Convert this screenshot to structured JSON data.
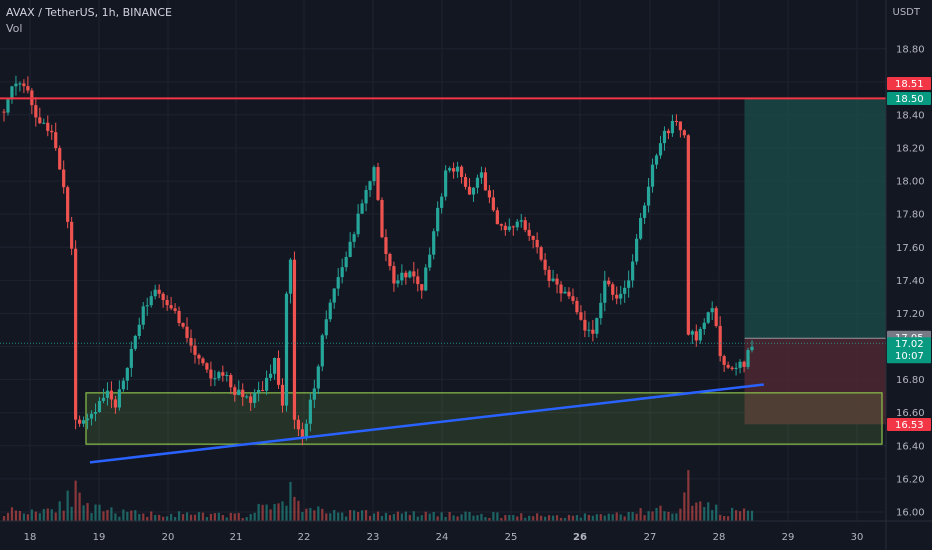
{
  "header": {
    "symbol_line": "AVAX / TetherUS, 1h, BINANCE",
    "volume_label": "Vol",
    "currency": "USDT"
  },
  "chart_data": {
    "type": "candlestick",
    "ylim": [
      15.9,
      19.0
    ],
    "y_ticks": [
      "18.80",
      "18.60",
      "18.40",
      "18.20",
      "18.00",
      "17.80",
      "17.60",
      "17.40",
      "17.20",
      "17.00",
      "16.80",
      "16.60",
      "16.40",
      "16.20",
      "16.00"
    ],
    "x_ticks": [
      "18",
      "19",
      "20",
      "21",
      "22",
      "23",
      "24",
      "25",
      "26",
      "27",
      "28",
      "29",
      "30"
    ],
    "bold_x_ticks": [
      "26"
    ],
    "price_path": [
      [
        0,
        18.42
      ],
      [
        2,
        18.55
      ],
      [
        5,
        18.6
      ],
      [
        8,
        18.4
      ],
      [
        12,
        18.3
      ],
      [
        15,
        17.95
      ],
      [
        17,
        17.6
      ],
      [
        18,
        16.55
      ],
      [
        22,
        16.6
      ],
      [
        26,
        16.72
      ],
      [
        28,
        16.62
      ],
      [
        31,
        16.9
      ],
      [
        35,
        17.22
      ],
      [
        38,
        17.35
      ],
      [
        42,
        17.25
      ],
      [
        45,
        17.1
      ],
      [
        48,
        16.95
      ],
      [
        52,
        16.8
      ],
      [
        55,
        16.85
      ],
      [
        58,
        16.72
      ],
      [
        62,
        16.68
      ],
      [
        65,
        16.75
      ],
      [
        68,
        16.92
      ],
      [
        70,
        16.62
      ],
      [
        71,
        17.3
      ],
      [
        72,
        17.55
      ],
      [
        73,
        16.55
      ],
      [
        75,
        16.45
      ],
      [
        78,
        16.75
      ],
      [
        80,
        17.05
      ],
      [
        83,
        17.35
      ],
      [
        86,
        17.55
      ],
      [
        90,
        17.85
      ],
      [
        93,
        18.1
      ],
      [
        95,
        17.65
      ],
      [
        98,
        17.4
      ],
      [
        102,
        17.45
      ],
      [
        105,
        17.35
      ],
      [
        108,
        17.7
      ],
      [
        111,
        18.05
      ],
      [
        114,
        18.1
      ],
      [
        117,
        17.9
      ],
      [
        120,
        18.05
      ],
      [
        123,
        17.8
      ],
      [
        126,
        17.7
      ],
      [
        130,
        17.75
      ],
      [
        133,
        17.65
      ],
      [
        136,
        17.45
      ],
      [
        139,
        17.35
      ],
      [
        142,
        17.3
      ],
      [
        145,
        17.15
      ],
      [
        148,
        17.05
      ],
      [
        151,
        17.4
      ],
      [
        154,
        17.3
      ],
      [
        157,
        17.4
      ],
      [
        160,
        17.75
      ],
      [
        163,
        18.1
      ],
      [
        165,
        18.25
      ],
      [
        168,
        18.35
      ],
      [
        171,
        18.3
      ],
      [
        172,
        17.1
      ],
      [
        174,
        17.05
      ],
      [
        176,
        17.15
      ],
      [
        178,
        17.25
      ],
      [
        180,
        16.95
      ],
      [
        183,
        16.85
      ],
      [
        186,
        16.9
      ],
      [
        188,
        17.02
      ]
    ],
    "volume_path": [
      [
        0,
        1.0
      ],
      [
        10,
        1.1
      ],
      [
        17,
        2.4
      ],
      [
        18,
        2.8
      ],
      [
        20,
        1.3
      ],
      [
        30,
        0.8
      ],
      [
        40,
        0.7
      ],
      [
        50,
        0.6
      ],
      [
        60,
        0.6
      ],
      [
        70,
        2.0
      ],
      [
        72,
        3.0
      ],
      [
        74,
        1.6
      ],
      [
        80,
        1.0
      ],
      [
        90,
        0.8
      ],
      [
        100,
        0.7
      ],
      [
        110,
        0.7
      ],
      [
        120,
        0.6
      ],
      [
        130,
        0.6
      ],
      [
        140,
        0.5
      ],
      [
        150,
        0.6
      ],
      [
        160,
        0.9
      ],
      [
        170,
        1.4
      ],
      [
        172,
        3.6
      ],
      [
        174,
        1.8
      ],
      [
        180,
        1.0
      ],
      [
        188,
        0.8
      ]
    ],
    "resistance_level": 18.5,
    "support_zone": {
      "top": 16.72,
      "bottom": 16.41
    },
    "trendline": {
      "start": [
        18.87,
        16.3
      ],
      "end": [
        28.65,
        16.77
      ]
    },
    "position": {
      "target": 18.5,
      "entry": 17.05,
      "stop": 16.53,
      "start_day": 28.37,
      "end_day": 29.4
    },
    "current_price": 17.02,
    "price_labels": {
      "resistance": "18.51",
      "target": "18.50",
      "entry": "17.05",
      "current": "17.02",
      "countdown": "10:07",
      "stop": "16.53"
    },
    "colors": {
      "up": "#26a69a",
      "down": "#ef5350",
      "resistance": "#f23645",
      "zone": "#8bc34a",
      "trendline": "#2962ff",
      "target_zone": "#1b4f4b",
      "stop_zone": "#4d2831",
      "current_tag": "#089981",
      "entry_tag": "#787b86",
      "stop_tag": "#f23645"
    }
  }
}
